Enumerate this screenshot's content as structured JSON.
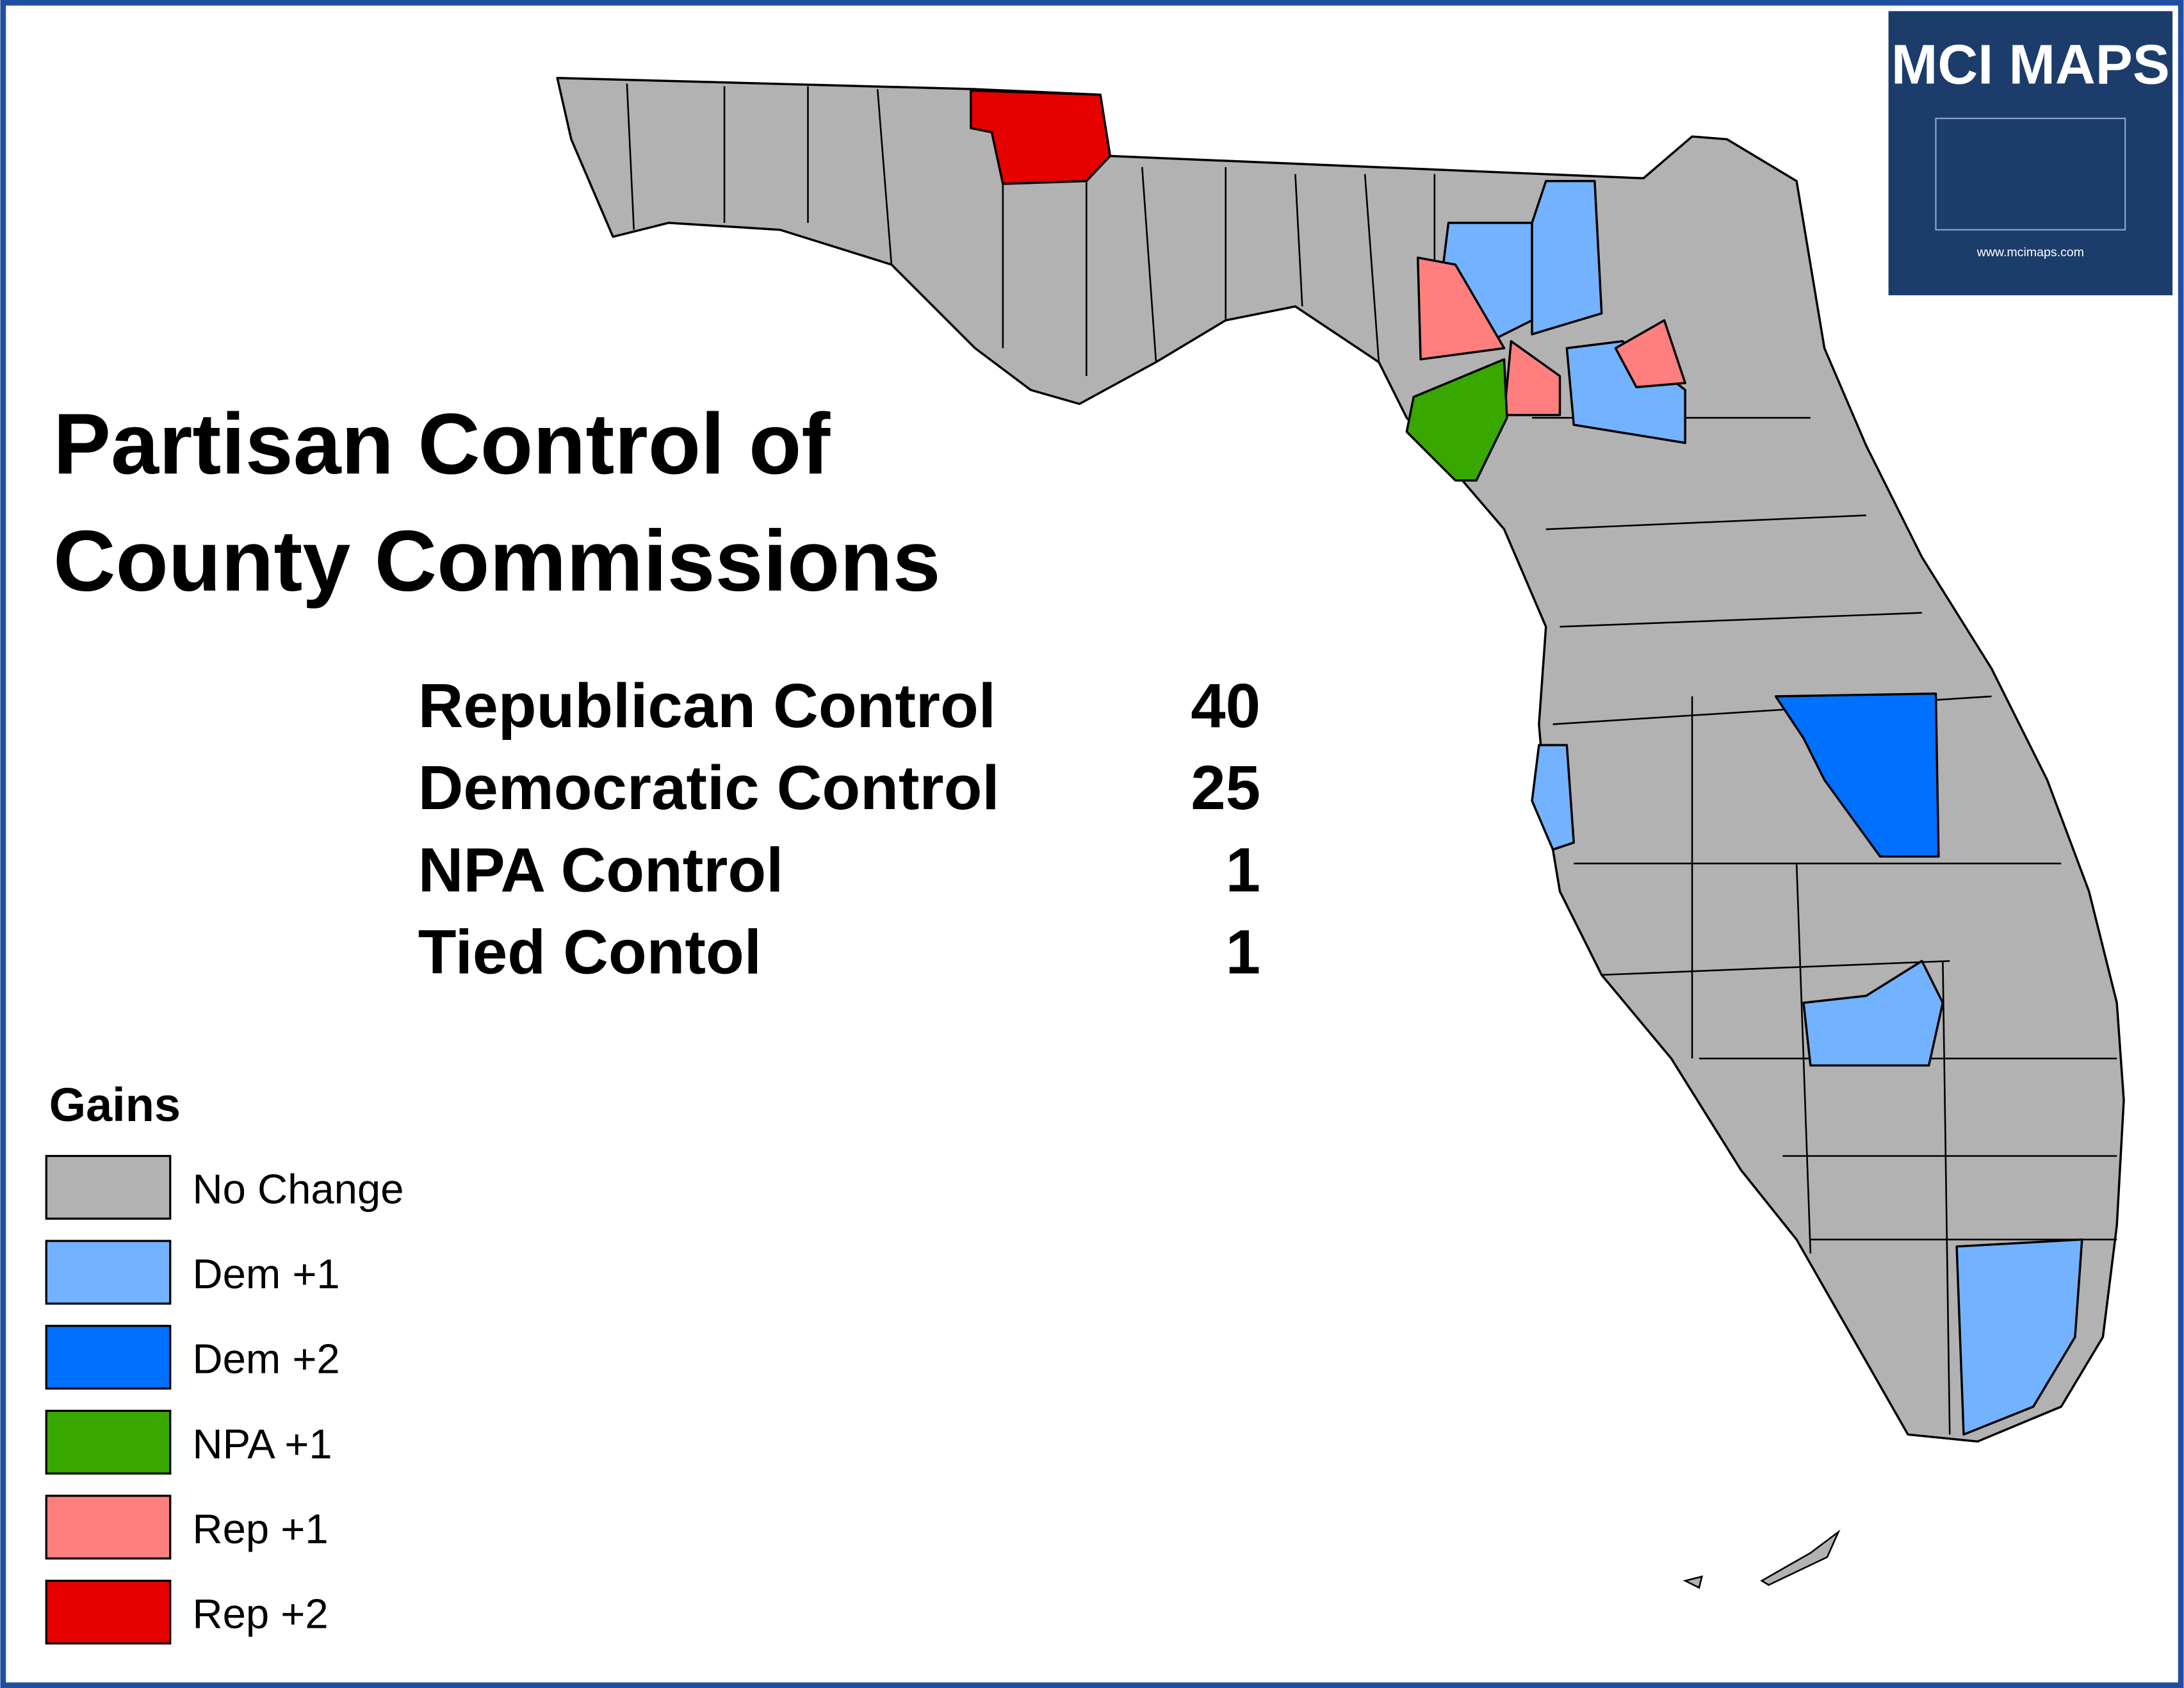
{
  "title": [
    "Partisan Control of",
    "County Commissions"
  ],
  "summary": [
    {
      "label": "Republican Control",
      "count": 40
    },
    {
      "label": "Democratic Control",
      "count": 25
    },
    {
      "label": "NPA Control",
      "count": 1
    },
    {
      "label": "Tied Contol",
      "count": 1
    }
  ],
  "legend": {
    "title": "Gains",
    "items": [
      {
        "label": "No Change",
        "color": "#b2b2b2"
      },
      {
        "label": "Dem +1",
        "color": "#73b2ff"
      },
      {
        "label": "Dem +2",
        "color": "#0070ff"
      },
      {
        "label": "NPA +1",
        "color": "#38a800"
      },
      {
        "label": "Rep +1",
        "color": "#ff7f7f"
      },
      {
        "label": "Rep +2",
        "color": "#e60000"
      }
    ]
  },
  "logo": {
    "title": "MCI MAPS",
    "url": "www.mcimaps.com"
  }
}
